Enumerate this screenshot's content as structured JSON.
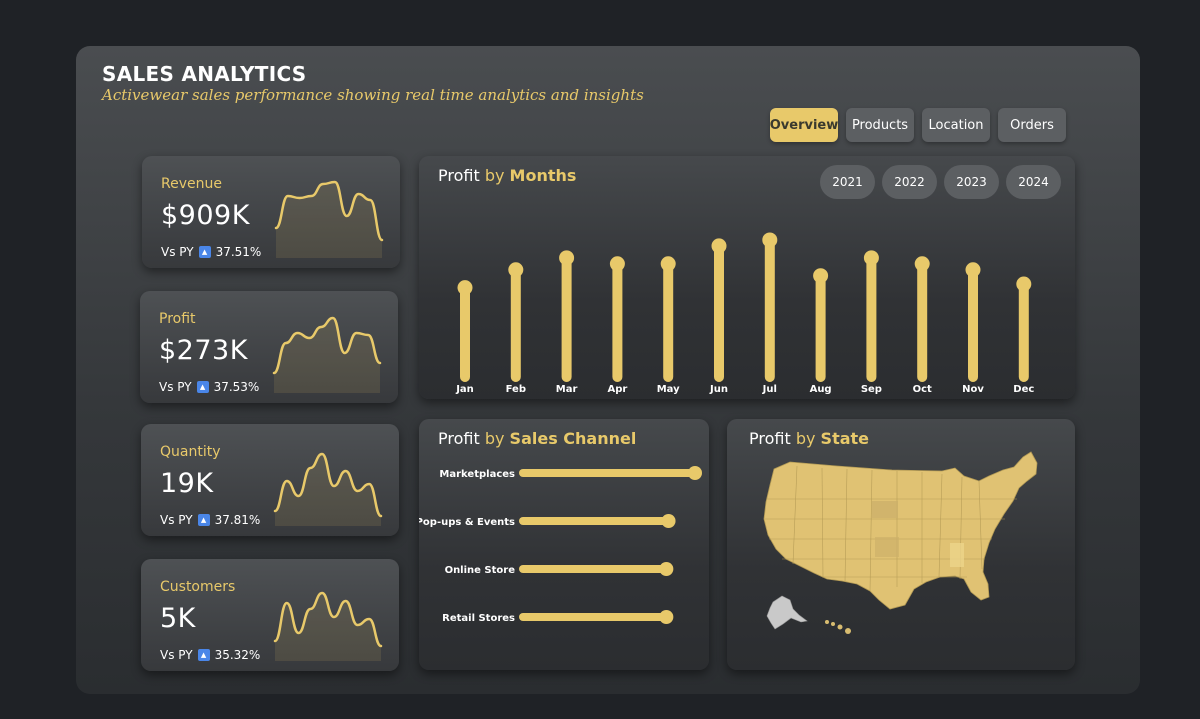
{
  "header": {
    "title": "SALES ANALYTICS",
    "subtitle": "Activewear sales performance showing real time analytics and insights"
  },
  "tabs": [
    {
      "label": "Overview",
      "active": true
    },
    {
      "label": "Products",
      "active": false
    },
    {
      "label": "Location",
      "active": false
    },
    {
      "label": "Orders",
      "active": false
    }
  ],
  "kpis": [
    {
      "label": "Revenue",
      "value": "$909K",
      "compare_label": "Vs PY",
      "change": "37.51%",
      "trend_icon": "up-triangle-icon"
    },
    {
      "label": "Profit",
      "value": "$273K",
      "compare_label": "Vs PY",
      "change": "37.53%",
      "trend_icon": "up-triangle-icon"
    },
    {
      "label": "Quantity",
      "value": "19K",
      "compare_label": "Vs PY",
      "change": "37.81%",
      "trend_icon": "up-triangle-icon"
    },
    {
      "label": "Customers",
      "value": "5K",
      "compare_label": "Vs PY",
      "change": "35.32%",
      "trend_icon": "up-triangle-icon"
    }
  ],
  "months_panel": {
    "title_prefix": "Profit",
    "title_by": "by",
    "title_dim": "Months",
    "years": [
      "2021",
      "2022",
      "2023",
      "2024"
    ]
  },
  "channel_panel": {
    "title_prefix": "Profit",
    "title_by": "by",
    "title_dim": "Sales Channel"
  },
  "state_panel": {
    "title_prefix": "Profit",
    "title_by": "by",
    "title_dim": "State"
  },
  "colors": {
    "accent": "#e8c96a",
    "background": "#1f2226",
    "panel": "#3a3d40",
    "trend_up": "#4a86e8"
  },
  "chart_data": [
    {
      "type": "bar",
      "title": "Profit by Months",
      "categories": [
        "Jan",
        "Feb",
        "Mar",
        "Apr",
        "May",
        "Jun",
        "Jul",
        "Aug",
        "Sep",
        "Oct",
        "Nov",
        "Dec"
      ],
      "values": [
        21.5,
        23.0,
        24.0,
        23.5,
        23.5,
        25.0,
        25.5,
        22.5,
        24.0,
        23.5,
        23.0,
        21.8
      ],
      "ylim": [
        0,
        26
      ]
    },
    {
      "type": "bar",
      "orientation": "horizontal",
      "title": "Profit by Sales Channel",
      "categories": [
        "Marketplaces",
        "Pop-ups & Events",
        "Online Store",
        "Retail Stores"
      ],
      "values": [
        78,
        66,
        65,
        65
      ]
    },
    {
      "type": "area",
      "title": "Revenue sparkline",
      "values": [
        30,
        62,
        60,
        62,
        74,
        76,
        42,
        64,
        58,
        18
      ]
    },
    {
      "type": "area",
      "title": "Profit sparkline",
      "values": [
        20,
        50,
        60,
        55,
        66,
        75,
        40,
        60,
        58,
        30
      ]
    },
    {
      "type": "area",
      "title": "Quantity sparkline",
      "values": [
        15,
        45,
        30,
        58,
        72,
        40,
        55,
        35,
        42,
        10
      ]
    },
    {
      "type": "area",
      "title": "Customers sparkline",
      "values": [
        20,
        58,
        28,
        52,
        68,
        44,
        60,
        36,
        42,
        15
      ]
    }
  ]
}
